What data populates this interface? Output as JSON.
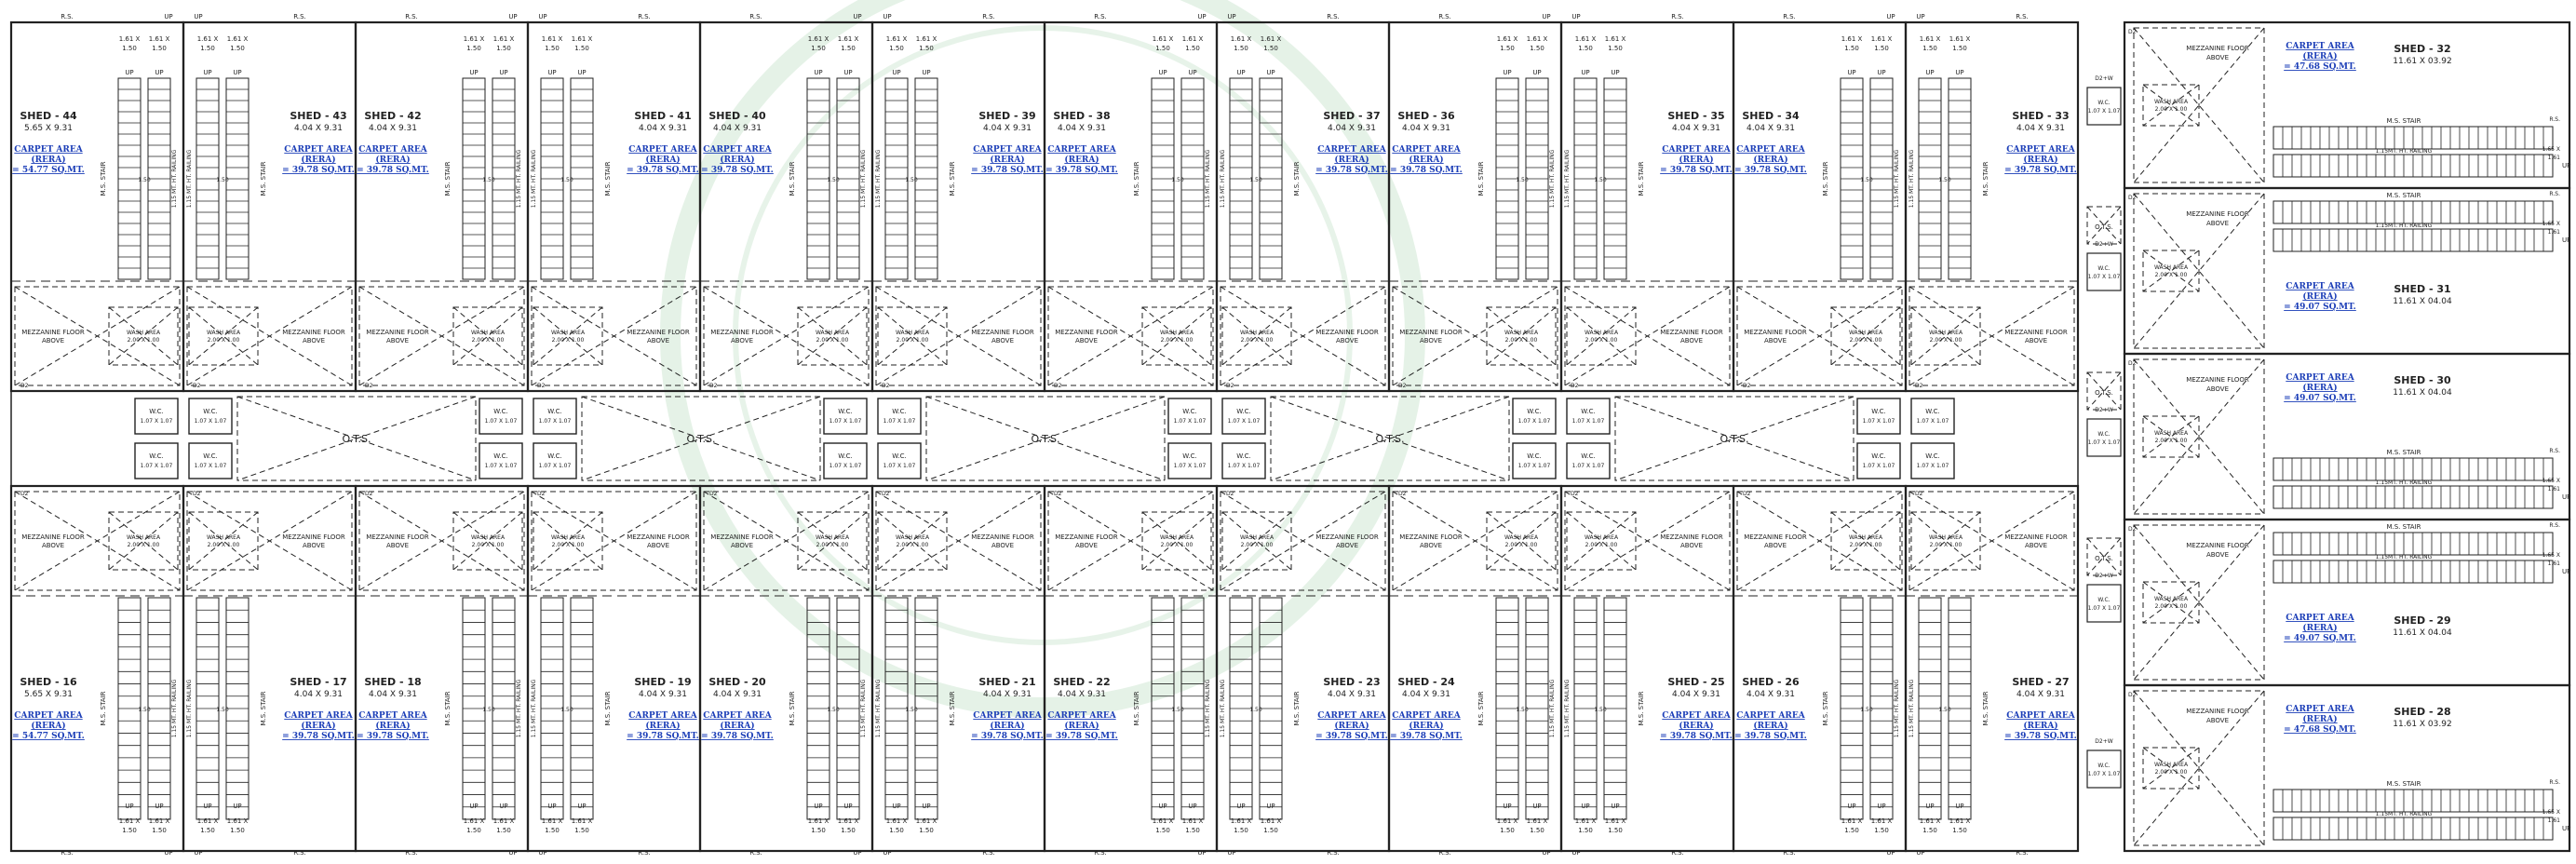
{
  "labels": {
    "up": "UP",
    "rs": "R.S.",
    "ms_stair": "M.S. STAIR",
    "railing": "1.15 MT. HT. RAILING",
    "mezz_line1": "MEZZANINE FLOOR",
    "mezz_line2": "ABOVE",
    "wash_line1": "WASH AREA",
    "wash_line2": "2.00 X 1.00",
    "wc": "W.C.",
    "wc_dim": "1.07 X 1.07",
    "ots": "O.T.S.",
    "d2": "D2",
    "d2w": "D2+W",
    "stair_w": "1.50",
    "landing_a": "1.61 X",
    "landing_b": "1.50",
    "ca1": "CARPET AREA",
    "ca2": "(RERA)",
    "railing_short": "1.15MT. HT. RAILING",
    "ms_stair_h": "M.S. STAIR",
    "landing_r": "1.65 X",
    "landing_r2": "1.61"
  },
  "top_row": [
    {
      "name": "SHED - 44",
      "dim": "5.65 X 9.31",
      "area": "= 54.77 SQ.MT."
    },
    {
      "name": "SHED - 43",
      "dim": "4.04 X 9.31",
      "area": "= 39.78 SQ.MT."
    },
    {
      "name": "SHED - 42",
      "dim": "4.04 X 9.31",
      "area": "= 39.78 SQ.MT."
    },
    {
      "name": "SHED - 41",
      "dim": "4.04 X 9.31",
      "area": "= 39.78 SQ.MT."
    },
    {
      "name": "SHED - 40",
      "dim": "4.04 X 9.31",
      "area": "= 39.78 SQ.MT."
    },
    {
      "name": "SHED - 39",
      "dim": "4.04 X 9.31",
      "area": "= 39.78 SQ.MT."
    },
    {
      "name": "SHED - 38",
      "dim": "4.04 X 9.31",
      "area": "= 39.78 SQ.MT."
    },
    {
      "name": "SHED - 37",
      "dim": "4.04 X 9.31",
      "area": "= 39.78 SQ.MT."
    },
    {
      "name": "SHED - 36",
      "dim": "4.04 X 9.31",
      "area": "= 39.78 SQ.MT."
    },
    {
      "name": "SHED - 35",
      "dim": "4.04 X 9.31",
      "area": "= 39.78 SQ.MT."
    },
    {
      "name": "SHED - 34",
      "dim": "4.04 X 9.31",
      "area": "= 39.78 SQ.MT."
    },
    {
      "name": "SHED - 33",
      "dim": "4.04 X 9.31",
      "area": "= 39.78 SQ.MT."
    }
  ],
  "bottom_row": [
    {
      "name": "SHED - 16",
      "dim": "5.65 X 9.31",
      "area": "= 54.77 SQ.MT."
    },
    {
      "name": "SHED - 17",
      "dim": "4.04 X 9.31",
      "area": "= 39.78 SQ.MT."
    },
    {
      "name": "SHED - 18",
      "dim": "4.04 X 9.31",
      "area": "= 39.78 SQ.MT."
    },
    {
      "name": "SHED - 19",
      "dim": "4.04 X 9.31",
      "area": "= 39.78 SQ.MT."
    },
    {
      "name": "SHED - 20",
      "dim": "4.04 X 9.31",
      "area": "= 39.78 SQ.MT."
    },
    {
      "name": "SHED - 21",
      "dim": "4.04 X 9.31",
      "area": "= 39.78 SQ.MT."
    },
    {
      "name": "SHED - 22",
      "dim": "4.04 X 9.31",
      "area": "= 39.78 SQ.MT."
    },
    {
      "name": "SHED - 23",
      "dim": "4.04 X 9.31",
      "area": "= 39.78 SQ.MT."
    },
    {
      "name": "SHED - 24",
      "dim": "4.04 X 9.31",
      "area": "= 39.78 SQ.MT."
    },
    {
      "name": "SHED - 25",
      "dim": "4.04 X 9.31",
      "area": "= 39.78 SQ.MT."
    },
    {
      "name": "SHED - 26",
      "dim": "4.04 X 9.31",
      "area": "= 39.78 SQ.MT."
    },
    {
      "name": "SHED - 27",
      "dim": "4.04 X 9.31",
      "area": "= 39.78 SQ.MT."
    }
  ],
  "right_column": [
    {
      "name": "SHED - 32",
      "dim": "11.61 X 03.92",
      "area": "= 47.68 SQ.MT."
    },
    {
      "name": "SHED - 31",
      "dim": "11.61 X 04.04",
      "area": "= 49.07 SQ.MT."
    },
    {
      "name": "SHED - 30",
      "dim": "11.61 X 04.04",
      "area": "= 49.07 SQ.MT."
    },
    {
      "name": "SHED - 29",
      "dim": "11.61 X 04.04",
      "area": "= 49.07 SQ.MT."
    },
    {
      "name": "SHED - 28",
      "dim": "11.61 X 03.92",
      "area": "= 47.68 SQ.MT."
    }
  ],
  "colors": {
    "line": "#222222",
    "carpet_area": "#1d3fb8",
    "watermark": "#cfe8d4"
  }
}
